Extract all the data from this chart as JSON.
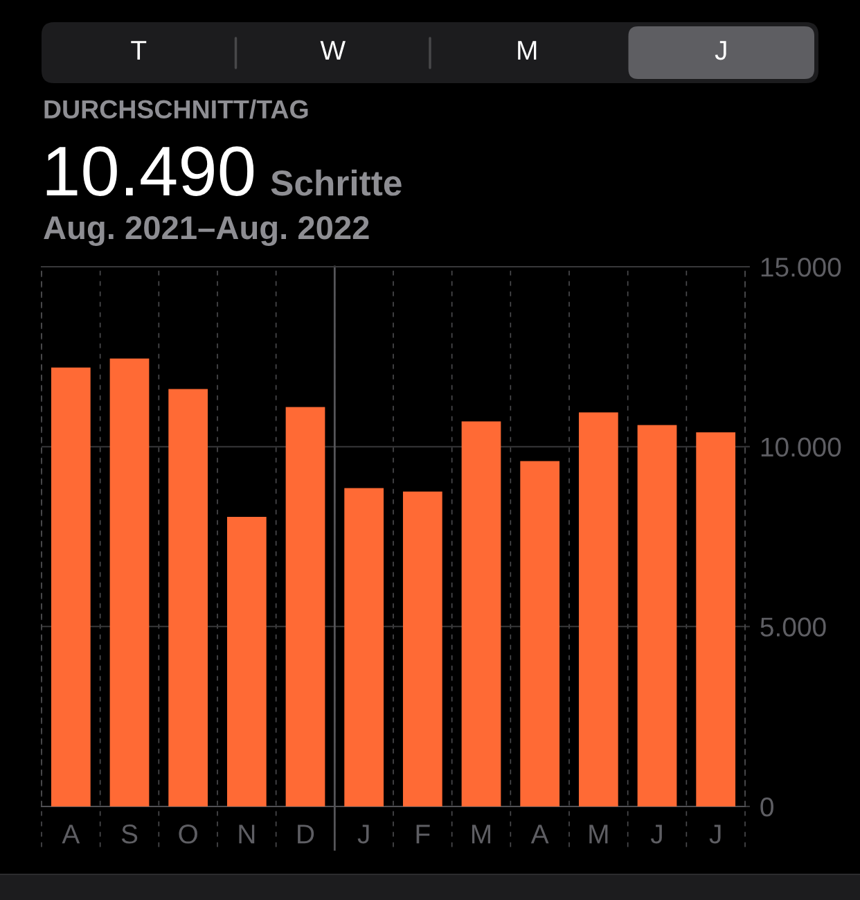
{
  "chart_data": {
    "type": "bar",
    "title": "DURCHSCHNITT/TAG",
    "subtitle": "Aug. 2021–Aug. 2022",
    "annotations": [
      "T",
      "W",
      "M",
      "J",
      "10.490",
      "Schritte"
    ],
    "categories": [
      "A",
      "S",
      "O",
      "N",
      "D",
      "J",
      "F",
      "M",
      "A",
      "M",
      "J",
      "J"
    ],
    "values": [
      12200,
      12450,
      11600,
      8050,
      11100,
      8850,
      8750,
      10700,
      9600,
      10950,
      10600,
      10400
    ],
    "color": "#ff6a35",
    "ylim": [
      0,
      15000
    ],
    "yticks": [
      0,
      {
        "value": 5000,
        "label": "5.000"
      },
      {
        "value": 10000,
        "label": "10.000"
      },
      {
        "value": 15000,
        "label": "15.000"
      }
    ],
    "ref_lines": [
      {
        "axis": "x",
        "value": "J",
        "line_style": "solid"
      }
    ],
    "grid": true
  }
}
